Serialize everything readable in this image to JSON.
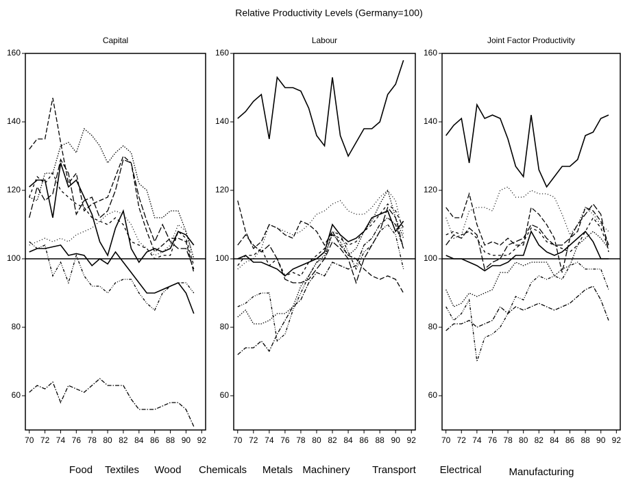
{
  "title": "Relative  Productivity  Levels (Germany=100)",
  "chart_data": [
    {
      "type": "line",
      "title": "Capital",
      "reference_line": 100,
      "x": [
        70,
        71,
        72,
        73,
        74,
        75,
        76,
        77,
        78,
        79,
        80,
        81,
        82,
        83,
        84,
        85,
        86,
        87,
        88,
        89,
        90,
        91
      ],
      "xlim": [
        69.5,
        92.5
      ],
      "xticks": [
        70,
        72,
        74,
        76,
        78,
        80,
        82,
        84,
        86,
        88,
        90,
        92
      ],
      "ylim": [
        50,
        160
      ],
      "yticks": [
        60,
        80,
        100,
        120,
        140,
        160
      ],
      "series": [
        {
          "name": "Food",
          "color": "#000",
          "dash": "7 3",
          "values": [
            132,
            135,
            135,
            147,
            134,
            122,
            125,
            114,
            116,
            117,
            118,
            124,
            130,
            128,
            115,
            108,
            102,
            104,
            106,
            106,
            105,
            96
          ]
        },
        {
          "name": "Textiles",
          "color": "#000",
          "dash": "1.5 2",
          "values": [
            118,
            117,
            125,
            125,
            133,
            134,
            131,
            138,
            136,
            133,
            128,
            131,
            133,
            131,
            122,
            120,
            112,
            112,
            114,
            114,
            108,
            100
          ]
        },
        {
          "name": "Wood",
          "color": "#000",
          "dash": "none",
          "values": [
            121,
            123,
            123,
            112,
            128,
            121,
            123,
            118,
            113,
            105,
            101,
            109,
            114,
            103,
            99,
            102,
            103,
            102,
            103,
            108,
            107,
            104
          ]
        },
        {
          "name": "Chemicals",
          "color": "#000",
          "dash": "6 2 1.5 2",
          "values": [
            61,
            63,
            62,
            64,
            58,
            63,
            62,
            61,
            63,
            65,
            63,
            63,
            63,
            59,
            56,
            56,
            56,
            57,
            58,
            58,
            56,
            51
          ]
        },
        {
          "name": "Metals",
          "color": "#000",
          "dash": "9 3",
          "values": [
            112,
            121,
            117,
            119,
            129,
            125,
            113,
            117,
            118,
            112,
            114,
            120,
            129,
            128,
            118,
            111,
            105,
            110,
            105,
            103,
            103,
            97
          ]
        },
        {
          "name": "Machinery",
          "color": "#000",
          "dash": "1 3",
          "values": [
            104,
            105,
            106,
            105,
            106,
            105,
            107,
            108,
            109,
            111,
            113,
            114,
            113,
            110,
            105,
            103,
            101,
            102,
            104,
            110,
            108,
            100
          ]
        },
        {
          "name": "Transport",
          "color": "#000",
          "dash": "4 2 1 2 1 2",
          "values": [
            105,
            103,
            104,
            95,
            99,
            93,
            101,
            95,
            92,
            92,
            90,
            93,
            94,
            94,
            90,
            87,
            85,
            90,
            92,
            93,
            93,
            90
          ]
        },
        {
          "name": "Electrical",
          "color": "#000",
          "dash": "4 4",
          "values": [
            118,
            124,
            122,
            125,
            120,
            118,
            116,
            115,
            112,
            111,
            110,
            112,
            110,
            105,
            104,
            103,
            100,
            101,
            101,
            108,
            106,
            98
          ]
        },
        {
          "name": "Manufacturing",
          "color": "#000",
          "dash": "none",
          "values": [
            102,
            103,
            103,
            103.5,
            104,
            101,
            101.5,
            101,
            98,
            100,
            98.5,
            102,
            99,
            96,
            93,
            90,
            90,
            91,
            92,
            93,
            90,
            84
          ]
        }
      ]
    },
    {
      "type": "line",
      "title": "Labour",
      "reference_line": 100,
      "x": [
        70,
        71,
        72,
        73,
        74,
        75,
        76,
        77,
        78,
        79,
        80,
        81,
        82,
        83,
        84,
        85,
        86,
        87,
        88,
        89,
        90,
        91
      ],
      "xlim": [
        69.5,
        92.5
      ],
      "xticks": [
        70,
        72,
        74,
        76,
        78,
        80,
        82,
        84,
        86,
        88,
        90,
        92
      ],
      "ylim": [
        50,
        160
      ],
      "yticks": [
        60,
        80,
        100,
        120,
        140,
        160
      ],
      "series": [
        {
          "name": "Food",
          "color": "#000",
          "dash": "7 3",
          "values": [
            117,
            108,
            103,
            105,
            110,
            109,
            107,
            106,
            111,
            110,
            108,
            104,
            108,
            104,
            101,
            100,
            97,
            95,
            94,
            95,
            94,
            90
          ]
        },
        {
          "name": "Textiles",
          "color": "#000",
          "dash": "1.5 2",
          "values": [
            83,
            85,
            81,
            81,
            82,
            84,
            84,
            86,
            92,
            95,
            99,
            101,
            107,
            105,
            101,
            103,
            108,
            111,
            116,
            120,
            112,
            106
          ]
        },
        {
          "name": "Wood",
          "color": "#000",
          "dash": "none",
          "values": [
            141,
            143,
            146,
            148,
            135,
            153,
            150,
            150,
            149,
            144,
            136,
            133,
            153,
            136,
            130,
            134,
            138,
            138,
            140,
            148,
            151,
            158
          ]
        },
        {
          "name": "Chemicals",
          "color": "#000",
          "dash": "6 2 1.5 2",
          "values": [
            72,
            74,
            74,
            76,
            73,
            78,
            82,
            86,
            88,
            93,
            96,
            95,
            99,
            98,
            97,
            98,
            104,
            106,
            110,
            112,
            110,
            103
          ]
        },
        {
          "name": "Metals",
          "color": "#000",
          "dash": "9 3",
          "values": [
            104,
            107,
            104,
            102,
            104,
            100,
            94,
            93,
            93,
            94,
            97,
            100,
            105,
            103,
            100,
            93,
            100,
            104,
            108,
            115,
            112,
            103
          ]
        },
        {
          "name": "Machinery",
          "color": "#000",
          "dash": "1 3",
          "values": [
            97,
            99,
            100,
            103,
            110,
            109,
            108,
            107,
            108,
            110,
            113,
            114,
            116,
            117,
            114,
            113,
            113,
            115,
            118,
            120,
            117,
            107
          ]
        },
        {
          "name": "Transport",
          "color": "#000",
          "dash": "4 2 1 2 1 2",
          "values": [
            86,
            87,
            89,
            90,
            90,
            76,
            78,
            85,
            90,
            95,
            99,
            100,
            108,
            107,
            102,
            97,
            102,
            104,
            108,
            110,
            107,
            97
          ]
        },
        {
          "name": "Electrical",
          "color": "#000",
          "dash": "4 4",
          "values": [
            98,
            101,
            101,
            103,
            98,
            100,
            95,
            96,
            95,
            99,
            101,
            103,
            107,
            106,
            104,
            105,
            108,
            110,
            113,
            116,
            114,
            109
          ]
        },
        {
          "name": "Manufacturing",
          "color": "#000",
          "dash": "none",
          "values": [
            100,
            101,
            99,
            99,
            98,
            97,
            95,
            97,
            98,
            99,
            100,
            102,
            110,
            107,
            105,
            106,
            108,
            112,
            113,
            114,
            108,
            111
          ]
        }
      ]
    },
    {
      "type": "line",
      "title": "Joint Factor Productivity",
      "reference_line": 100,
      "x": [
        70,
        71,
        72,
        73,
        74,
        75,
        76,
        77,
        78,
        79,
        80,
        81,
        82,
        83,
        84,
        85,
        86,
        87,
        88,
        89,
        90,
        91
      ],
      "xlim": [
        69.5,
        92.5
      ],
      "xticks": [
        70,
        72,
        74,
        76,
        78,
        80,
        82,
        84,
        86,
        88,
        90,
        92
      ],
      "ylim": [
        50,
        160
      ],
      "yticks": [
        60,
        80,
        100,
        120,
        140,
        160
      ],
      "series": [
        {
          "name": "Food",
          "color": "#000",
          "dash": "7 3",
          "values": [
            115,
            112,
            112,
            119,
            110,
            104,
            105,
            104,
            106,
            104,
            104,
            115,
            113,
            110,
            106,
            96,
            106,
            108,
            115,
            114,
            111,
            104
          ]
        },
        {
          "name": "Textiles",
          "color": "#000",
          "dash": "1.5 2",
          "values": [
            91,
            86,
            87,
            90,
            89,
            90,
            91,
            96,
            96,
            99,
            98,
            99,
            99,
            99,
            95,
            97,
            98,
            104,
            106,
            108,
            106,
            103
          ]
        },
        {
          "name": "Wood",
          "color": "#000",
          "dash": "none",
          "values": [
            136,
            139,
            141,
            128,
            145,
            141,
            142,
            141,
            135,
            127,
            124,
            142,
            126,
            121,
            124,
            127,
            127,
            129,
            136,
            137,
            141,
            142
          ]
        },
        {
          "name": "Chemicals",
          "color": "#000",
          "dash": "6 2 1.5 2",
          "values": [
            79,
            81,
            81,
            82,
            80,
            81,
            82,
            86,
            84,
            86,
            85,
            86,
            87,
            86,
            85,
            86,
            87,
            89,
            91,
            92,
            88,
            82
          ]
        },
        {
          "name": "Metals",
          "color": "#000",
          "dash": "9 3",
          "values": [
            104,
            107,
            106,
            109,
            107,
            97,
            99,
            100,
            104,
            105,
            106,
            110,
            109,
            106,
            104,
            104,
            106,
            110,
            113,
            116,
            113,
            102
          ]
        },
        {
          "name": "Machinery",
          "color": "#000",
          "dash": "1 3",
          "values": [
            112,
            106,
            107,
            114,
            115,
            115,
            114,
            120,
            121,
            118,
            118,
            120,
            119,
            119,
            118,
            113,
            107,
            110,
            115,
            113,
            110,
            108
          ]
        },
        {
          "name": "Transport",
          "color": "#000",
          "dash": "4 2 1 2 1 2",
          "values": [
            86,
            82,
            84,
            88,
            70,
            77,
            78,
            80,
            84,
            89,
            88,
            93,
            95,
            94,
            95,
            94,
            98,
            99,
            97,
            97,
            97,
            91
          ]
        },
        {
          "name": "Electrical",
          "color": "#000",
          "dash": "4 4",
          "values": [
            107,
            108,
            107,
            108,
            106,
            102,
            101,
            101,
            101,
            103,
            105,
            109,
            108,
            105,
            104,
            103,
            102,
            104,
            108,
            112,
            109,
            103
          ]
        },
        {
          "name": "Manufacturing",
          "color": "#000",
          "dash": "none",
          "values": [
            101,
            100,
            100,
            99,
            98,
            96.5,
            98,
            98,
            99,
            101,
            101,
            108,
            104,
            102,
            101,
            102,
            104,
            106,
            108,
            105,
            100,
            100
          ]
        }
      ]
    }
  ]
}
